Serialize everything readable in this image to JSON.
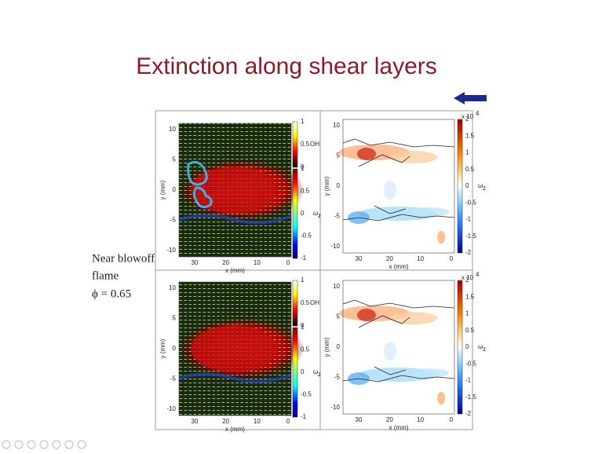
{
  "title": "Extinction along shear layers",
  "side_label": [
    "Near blowoff",
    "flame",
    "ϕ = 0.65"
  ],
  "axes": {
    "x_label": "x (mm)",
    "y_label": "y (mm)",
    "x_ticks": [
      "30",
      "20",
      "10",
      "0"
    ],
    "y_ticks": [
      "10",
      "5",
      "0",
      "-5",
      "-10"
    ]
  },
  "oh_colorbar": {
    "ticks": [
      "1",
      "0.5",
      "0"
    ],
    "label": "OH"
  },
  "vorticity_colorbar": {
    "ticks": [
      "1",
      "0.5",
      "0",
      "-0.5",
      "-1"
    ],
    "label": "ω",
    "label_sub": "z"
  },
  "scaled_colorbar": {
    "multiplier": "x 10",
    "multiplier_sup": "4",
    "ticks": [
      "2",
      "1.5",
      "1",
      "0.5",
      "0",
      "-0.5",
      "-1",
      "-1.5",
      "-2"
    ],
    "label": "ω",
    "label_sub": "z"
  }
}
